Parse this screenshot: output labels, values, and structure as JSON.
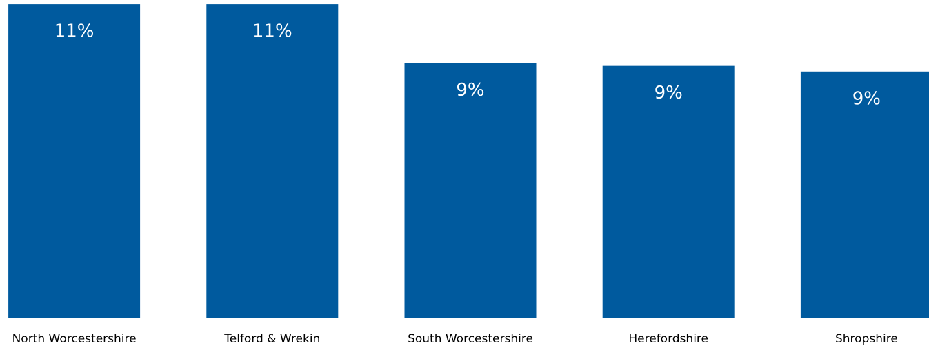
{
  "chart_data": {
    "type": "bar",
    "categories": [
      "North Worcestershire",
      "Telford & Wrekin",
      "South Worcestershire",
      "Herefordshire",
      "Shropshire"
    ],
    "values": [
      11.2,
      11.2,
      9.1,
      9.0,
      8.8
    ],
    "value_labels": [
      "11%",
      "11%",
      "9%",
      "9%",
      "9%"
    ],
    "color": "#005a9e",
    "ylim": [
      0,
      11.35
    ]
  }
}
